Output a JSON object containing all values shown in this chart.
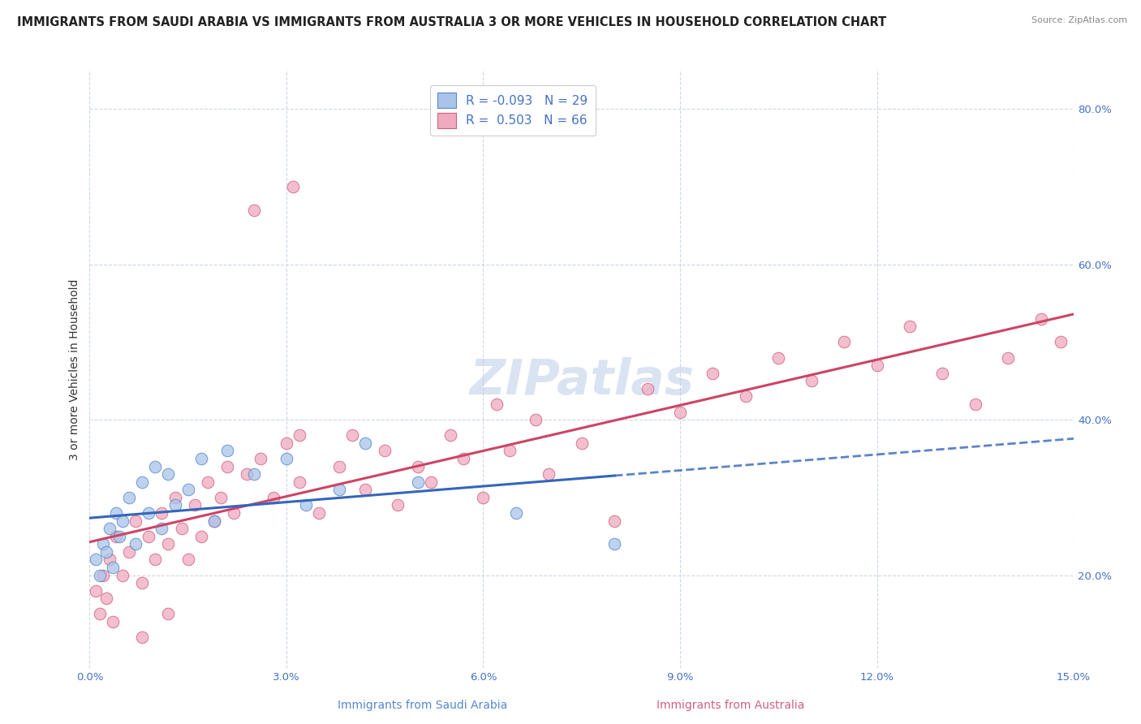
{
  "title": "IMMIGRANTS FROM SAUDI ARABIA VS IMMIGRANTS FROM AUSTRALIA 3 OR MORE VEHICLES IN HOUSEHOLD CORRELATION CHART",
  "source": "Source: ZipAtlas.com",
  "xlabel_saudi": "Immigrants from Saudi Arabia",
  "xlabel_australia": "Immigrants from Australia",
  "ylabel": "3 or more Vehicles in Household",
  "watermark": "ZIPatlas",
  "xlim": [
    0.0,
    15.0
  ],
  "ylim": [
    8.0,
    85.0
  ],
  "x_ticks": [
    0.0,
    3.0,
    6.0,
    9.0,
    12.0,
    15.0
  ],
  "x_tick_labels": [
    "0.0%",
    "3.0%",
    "6.0%",
    "9.0%",
    "12.0%",
    "15.0%"
  ],
  "y_ticks": [
    20.0,
    40.0,
    60.0,
    80.0
  ],
  "y_tick_labels": [
    "20.0%",
    "40.0%",
    "60.0%",
    "80.0%"
  ],
  "legend_r_saudi": "-0.093",
  "legend_n_saudi": "29",
  "legend_r_australia": "0.503",
  "legend_n_australia": "66",
  "color_saudi_fill": "#aac4e8",
  "color_saudi_edge": "#5588cc",
  "color_australia_fill": "#f0aabf",
  "color_australia_edge": "#d06080",
  "color_saudi_line": "#3366bb",
  "color_australia_line": "#cc4466",
  "background_color": "#ffffff",
  "grid_color": "#c8d4e4",
  "title_fontsize": 10.5,
  "axis_fontsize": 10,
  "tick_fontsize": 9.5,
  "legend_fontsize": 11,
  "watermark_fontsize": 44,
  "watermark_color": "#bccce8",
  "tick_color": "#4472c4",
  "sa_max_x": 8.0,
  "sa_x": [
    0.1,
    0.15,
    0.2,
    0.25,
    0.3,
    0.35,
    0.4,
    0.45,
    0.5,
    0.6,
    0.7,
    0.8,
    0.9,
    1.0,
    1.1,
    1.2,
    1.3,
    1.5,
    1.7,
    1.9,
    2.1,
    2.5,
    3.0,
    3.3,
    3.8,
    4.2,
    5.0,
    6.5,
    8.0
  ],
  "sa_y": [
    22,
    20,
    24,
    23,
    26,
    21,
    28,
    25,
    27,
    30,
    24,
    32,
    28,
    34,
    26,
    33,
    29,
    31,
    35,
    27,
    36,
    33,
    35,
    29,
    31,
    37,
    32,
    28,
    24
  ],
  "au_x": [
    0.1,
    0.15,
    0.2,
    0.25,
    0.3,
    0.35,
    0.4,
    0.5,
    0.6,
    0.7,
    0.8,
    0.9,
    1.0,
    1.1,
    1.2,
    1.3,
    1.4,
    1.5,
    1.6,
    1.7,
    1.8,
    1.9,
    2.0,
    2.1,
    2.2,
    2.4,
    2.5,
    2.6,
    2.8,
    3.0,
    3.1,
    3.2,
    3.5,
    3.8,
    4.0,
    4.2,
    4.5,
    4.7,
    5.0,
    5.2,
    5.5,
    5.7,
    6.0,
    6.2,
    6.4,
    6.8,
    7.0,
    7.5,
    8.5,
    9.0,
    9.5,
    10.0,
    10.5,
    11.0,
    11.5,
    12.0,
    12.5,
    13.0,
    13.5,
    14.0,
    14.5,
    14.8,
    8.0,
    3.2,
    1.2,
    0.8
  ],
  "au_y": [
    18,
    15,
    20,
    17,
    22,
    14,
    25,
    20,
    23,
    27,
    19,
    25,
    22,
    28,
    24,
    30,
    26,
    22,
    29,
    25,
    32,
    27,
    30,
    34,
    28,
    33,
    67,
    35,
    30,
    37,
    70,
    32,
    28,
    34,
    38,
    31,
    36,
    29,
    34,
    32,
    38,
    35,
    30,
    42,
    36,
    40,
    33,
    37,
    44,
    41,
    46,
    43,
    48,
    45,
    50,
    47,
    52,
    46,
    42,
    48,
    53,
    50,
    27,
    38,
    15,
    12
  ]
}
